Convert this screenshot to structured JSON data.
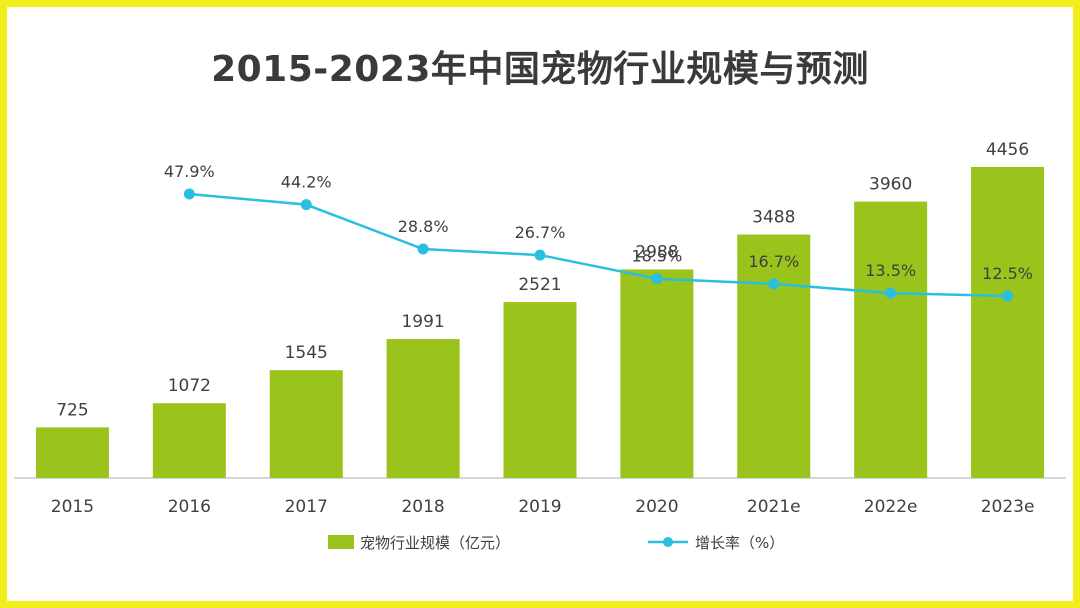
{
  "chart_data": {
    "type": "bar",
    "title": "2015-2023年中国宠物行业规模与预测",
    "categories": [
      "2015",
      "2016",
      "2017",
      "2018",
      "2019",
      "2020",
      "2021e",
      "2022e",
      "2023e"
    ],
    "series": [
      {
        "name": "宠物行业规模（亿元）",
        "type": "bar",
        "color": "#9ac31c",
        "values": [
          725,
          1072,
          1545,
          1991,
          2521,
          2988,
          3488,
          3960,
          4456
        ],
        "labels": [
          "725",
          "1072",
          "1545",
          "1991",
          "2521",
          "2988",
          "3488",
          "3960",
          "4456"
        ]
      },
      {
        "name": "增长率（%）",
        "type": "line",
        "color": "#29bfe0",
        "values": [
          null,
          47.9,
          44.2,
          28.8,
          26.7,
          18.5,
          16.7,
          13.5,
          12.5
        ],
        "labels": [
          "",
          "47.9%",
          "44.2%",
          "28.8%",
          "26.7%",
          "18.5%",
          "16.7%",
          "13.5%",
          "12.5%"
        ]
      }
    ],
    "legend_position": "bottom",
    "grid": false
  }
}
